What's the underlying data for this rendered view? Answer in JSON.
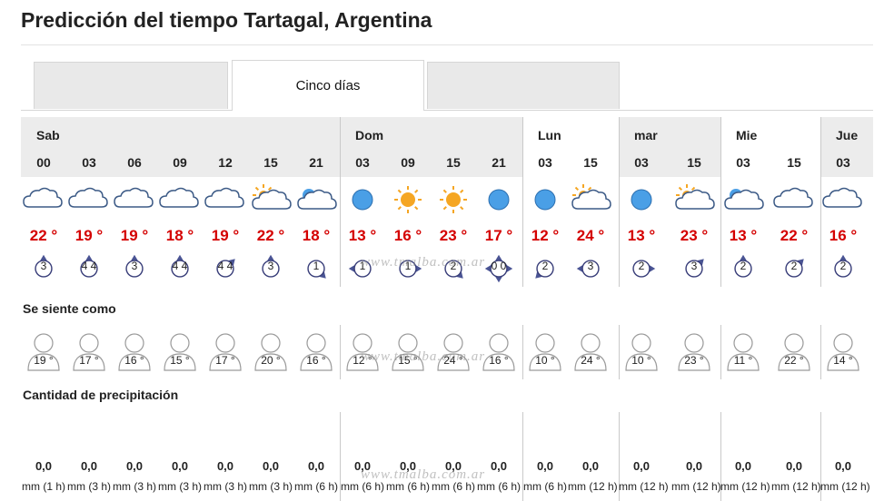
{
  "title": "Predicción del tiempo Tartagal, Argentina",
  "tabs": [
    {
      "label": ""
    },
    {
      "label": "Cinco días",
      "active": true
    },
    {
      "label": ""
    }
  ],
  "days": [
    {
      "name": "Sab"
    },
    {
      "name": "Dom"
    },
    {
      "name": "Lun"
    },
    {
      "name": "mar"
    },
    {
      "name": "Mie"
    },
    {
      "name": "Jue"
    }
  ],
  "periods": [
    {
      "hour": "00",
      "icon": "cloud-icon",
      "temp": "22 °",
      "wind": "3",
      "wind_dir": "S",
      "feels": "19 °",
      "precip": "0,0",
      "precip_unit": "mm (1 h)"
    },
    {
      "hour": "03",
      "icon": "cloud-icon",
      "temp": "19 °",
      "wind": "4 4",
      "wind_dir": "S",
      "feels": "17 °",
      "precip": "0,0",
      "precip_unit": "mm (3 h)"
    },
    {
      "hour": "06",
      "icon": "cloud-icon",
      "temp": "19 °",
      "wind": "3",
      "wind_dir": "S",
      "feels": "16 °",
      "precip": "0,0",
      "precip_unit": "mm (3 h)"
    },
    {
      "hour": "09",
      "icon": "cloud-icon",
      "temp": "18 °",
      "wind": "4 4",
      "wind_dir": "S",
      "feels": "15 °",
      "precip": "0,0",
      "precip_unit": "mm (3 h)"
    },
    {
      "hour": "12",
      "icon": "cloud-icon",
      "temp": "19 °",
      "wind": "4 4",
      "wind_dir": "SW",
      "feels": "17 °",
      "precip": "0,0",
      "precip_unit": "mm (3 h)"
    },
    {
      "hour": "15",
      "icon": "sun-cloud-icon",
      "temp": "22 °",
      "wind": "3",
      "wind_dir": "S",
      "feels": "20 °",
      "precip": "0,0",
      "precip_unit": "mm (3 h)"
    },
    {
      "hour": "21",
      "icon": "moon-cloud-icon",
      "temp": "18 °",
      "wind": "1",
      "wind_dir": "NW",
      "feels": "16 °",
      "precip": "0,0",
      "precip_unit": "mm (6 h)"
    },
    {
      "hour": "03",
      "icon": "moon-icon",
      "temp": "13 °",
      "wind": "1",
      "wind_dir": "E",
      "feels": "12 °",
      "precip": "0,0",
      "precip_unit": "mm (6 h)"
    },
    {
      "hour": "09",
      "icon": "sun-icon",
      "temp": "16 °",
      "wind": "1",
      "wind_dir": "W",
      "feels": "15 °",
      "precip": "0,0",
      "precip_unit": "mm (6 h)"
    },
    {
      "hour": "15",
      "icon": "sun-icon",
      "temp": "23 °",
      "wind": "2",
      "wind_dir": "NW",
      "feels": "24 °",
      "precip": "0,0",
      "precip_unit": "mm (6 h)"
    },
    {
      "hour": "21",
      "icon": "moon-icon",
      "temp": "17 °",
      "wind": "0 0",
      "wind_dir": "X",
      "feels": "16 °",
      "precip": "0,0",
      "precip_unit": "mm (6 h)"
    },
    {
      "hour": "03",
      "icon": "moon-icon",
      "temp": "12 °",
      "wind": "2",
      "wind_dir": "NE",
      "feels": "10 °",
      "precip": "0,0",
      "precip_unit": "mm (6 h)"
    },
    {
      "hour": "15",
      "icon": "sun-cloud-icon",
      "temp": "24 °",
      "wind": "3",
      "wind_dir": "E",
      "feels": "24 °",
      "precip": "0,0",
      "precip_unit": "mm (12 h)"
    },
    {
      "hour": "03",
      "icon": "moon-icon",
      "temp": "13 °",
      "wind": "2",
      "wind_dir": "W",
      "feels": "10 °",
      "precip": "0,0",
      "precip_unit": "mm (12 h)"
    },
    {
      "hour": "15",
      "icon": "sun-cloud-icon",
      "temp": "23 °",
      "wind": "3",
      "wind_dir": "SW",
      "feels": "23 °",
      "precip": "0,0",
      "precip_unit": "mm (12 h)"
    },
    {
      "hour": "03",
      "icon": "moon-cloud-icon",
      "temp": "13 °",
      "wind": "2",
      "wind_dir": "S",
      "feels": "11 °",
      "precip": "0,0",
      "precip_unit": "mm (12 h)"
    },
    {
      "hour": "15",
      "icon": "cloud-icon",
      "temp": "22 °",
      "wind": "2",
      "wind_dir": "SW",
      "feels": "22 °",
      "precip": "0,0",
      "precip_unit": "mm (12 h)"
    },
    {
      "hour": "03",
      "icon": "cloud-icon",
      "temp": "16 °",
      "wind": "2",
      "wind_dir": "S",
      "feels": "14 °",
      "precip": "0,0",
      "precip_unit": "mm (12 h)"
    }
  ],
  "sections": {
    "feels_like": "Se siente como",
    "precipitation": "Cantidad de precipitación"
  },
  "watermark": "www.tmalba.com.ar",
  "colors": {
    "temp": "#d40000",
    "day_band": "#ececec",
    "wind_circle": "#3a3f7a",
    "wind_arrow": "#4a5494",
    "moon": "#4a9fe6",
    "sun": "#f5a623",
    "cloud_stroke": "#3c5a86"
  }
}
